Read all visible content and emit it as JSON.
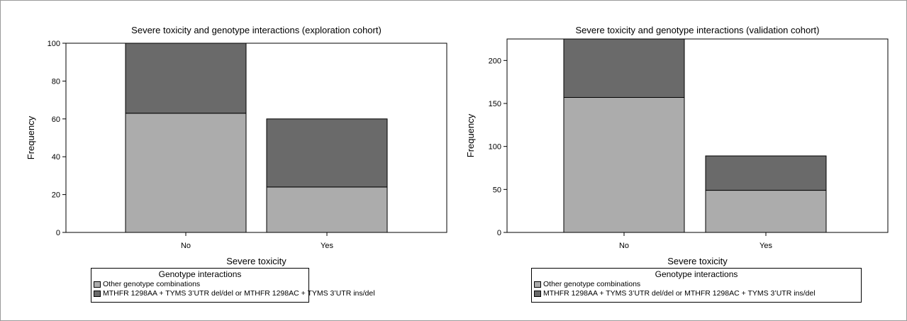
{
  "colors": {
    "other": "#acacac",
    "interaction": "#6a6a6a",
    "axis": "#000000"
  },
  "chart_data": [
    {
      "type": "bar",
      "stacked": true,
      "title": "Severe toxicity and genotype interactions (exploration cohort)",
      "xlabel": "Severe toxicity",
      "ylabel": "Frequency",
      "categories": [
        "No",
        "Yes"
      ],
      "ylim": [
        0,
        100
      ],
      "yticks": [
        0,
        20,
        40,
        60,
        80,
        100
      ],
      "series": [
        {
          "name": "Other genotype combinations",
          "values": [
            63,
            24
          ]
        },
        {
          "name": "MTHFR 1298AA + TYMS 3’UTR del/del or MTHFR 1298AC + TYMS 3’UTR ins/del",
          "values": [
            37,
            36
          ]
        }
      ],
      "legend": {
        "title": "Genotype interactions",
        "position": "bottom"
      }
    },
    {
      "type": "bar",
      "stacked": true,
      "title": "Severe toxicity and genotype interactions (validation cohort)",
      "xlabel": "Severe toxicity",
      "ylabel": "Frequency",
      "categories": [
        "No",
        "Yes"
      ],
      "ylim": [
        0,
        225
      ],
      "yticks": [
        0,
        50,
        100,
        150,
        200
      ],
      "series": [
        {
          "name": "Other genotype combinations",
          "values": [
            157,
            49
          ]
        },
        {
          "name": "MTHFR 1298AA + TYMS 3’UTR del/del or MTHFR 1298AC + TYMS 3’UTR ins/del",
          "values": [
            68,
            40
          ]
        }
      ],
      "legend": {
        "title": "Genotype interactions",
        "position": "bottom"
      }
    }
  ]
}
